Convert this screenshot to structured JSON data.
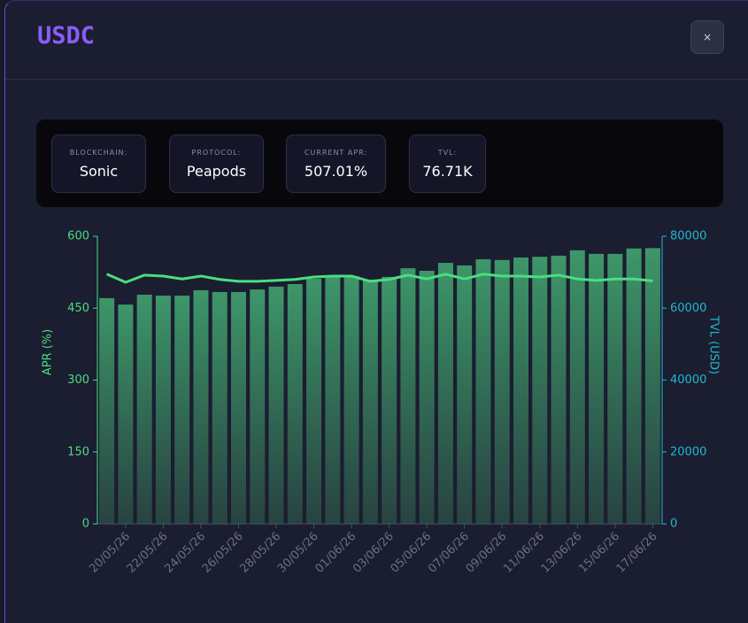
{
  "header": {
    "title": "USDC",
    "close": "×"
  },
  "info": [
    {
      "label": "BLOCKCHAIN:",
      "value": "Sonic"
    },
    {
      "label": "PROTOCOL:",
      "value": "Peapods"
    },
    {
      "label": "CURRENT APR:",
      "value": "507.01%"
    },
    {
      "label": "TVL:",
      "value": "76.71K"
    }
  ],
  "chart_data": {
    "type": "combo",
    "ylabel": "APR (%)",
    "y2label": "TVL (USD)",
    "categories": [
      null,
      "20/05/26",
      null,
      "22/05/26",
      null,
      "24/05/26",
      null,
      "26/05/26",
      null,
      "28/05/26",
      null,
      "30/05/26",
      null,
      "01/06/26",
      null,
      "03/06/26",
      null,
      "05/06/26",
      null,
      "07/06/26",
      null,
      "09/06/26",
      null,
      "11/06/26",
      null,
      "13/06/26",
      null,
      "15/06/26",
      null,
      "17/06/26"
    ],
    "ylim": [
      0,
      600
    ],
    "yticks": [
      0,
      150,
      300,
      450,
      600
    ],
    "y2lim": [
      0,
      80000
    ],
    "y2ticks": [
      0,
      20000,
      40000,
      60000,
      80000
    ],
    "series": [
      {
        "type": "bar",
        "axis": "y2",
        "color": "#3f9d6c",
        "values": [
          62800,
          61000,
          63750,
          63500,
          63500,
          65000,
          64500,
          64500,
          65200,
          66000,
          66700,
          68200,
          68900,
          68900,
          67900,
          68700,
          71100,
          70400,
          72600,
          71900,
          73600,
          73400,
          74100,
          74300,
          74600,
          76100,
          75100,
          75100,
          76600,
          76710
        ]
      },
      {
        "type": "line",
        "color": "#4ade80",
        "values": [
          521,
          504,
          519,
          517,
          511,
          517,
          510,
          506,
          506,
          508,
          510,
          515,
          517,
          517,
          506,
          510,
          519,
          511,
          521,
          511,
          521,
          517,
          517,
          515,
          519,
          511,
          508,
          511,
          511,
          507.01
        ]
      }
    ]
  }
}
